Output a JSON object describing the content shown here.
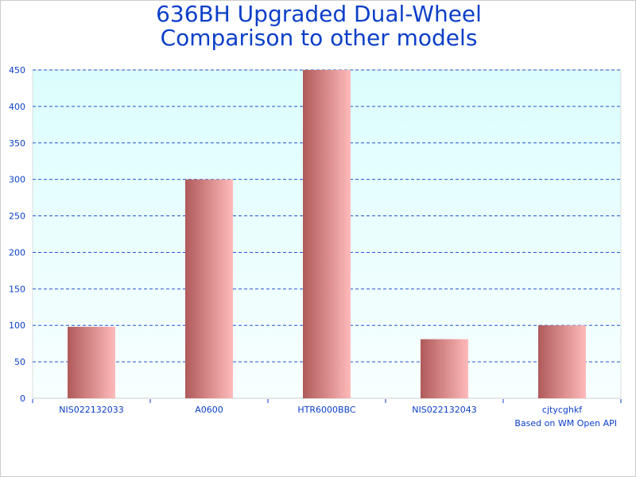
{
  "chart_data": {
    "type": "bar",
    "title": [
      "636BH Upgraded Dual-Wheel",
      "Comparison to other models"
    ],
    "categories": [
      "NIS022132033",
      "A0600",
      "HTR6000BBC",
      "NIS022132043",
      "cjtycghkf"
    ],
    "values": [
      98,
      300,
      450,
      81,
      100
    ],
    "ylim": [
      0,
      450
    ],
    "yticks": [
      0,
      50,
      100,
      150,
      200,
      250,
      300,
      350,
      400,
      450
    ],
    "grid": true,
    "xlabel": "",
    "ylabel": "",
    "footnote": "Based on WM Open API",
    "colors": {
      "text": "#0b3fc8",
      "grid": "#2255cc",
      "bar_dark": "#b05a5a",
      "bar_light": "#ffbaba",
      "bg_top": "#dcfdfd",
      "bg_bottom": "#f8ffff"
    }
  }
}
